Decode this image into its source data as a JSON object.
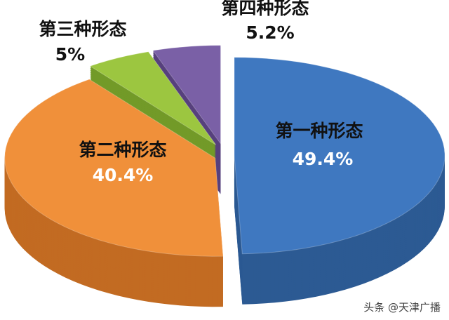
{
  "chart_data": {
    "type": "pie",
    "style": "3d-exploded",
    "categories": [
      "第一种形态",
      "第二种形态",
      "第三种形态",
      "第四种形态"
    ],
    "values": [
      49.4,
      40.4,
      5,
      5.2
    ],
    "value_labels": [
      "49.4%",
      "40.4%",
      "5%",
      "5.2%"
    ],
    "colors": [
      "#3f78c0",
      "#f0903a",
      "#9cc640",
      "#7a60a6"
    ],
    "side_colors": [
      "#2c5a93",
      "#c26b22",
      "#729a28",
      "#57417d"
    ],
    "label_colors": [
      "#111111",
      "#111111",
      "#111111",
      "#111111"
    ],
    "value_label_colors": [
      "#ffffff",
      "#ffffff",
      "#111111",
      "#111111"
    ]
  },
  "watermark": "头条 @天津广播"
}
